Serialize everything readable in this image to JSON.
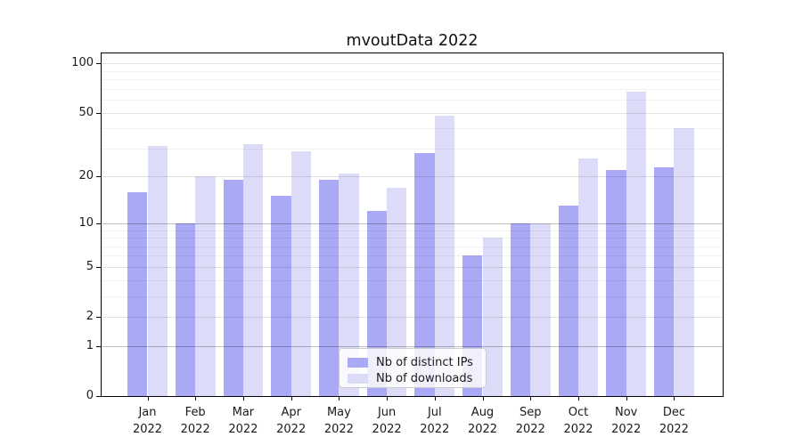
{
  "figure": {
    "background": "#ffffff"
  },
  "chart_data": {
    "type": "bar",
    "title": "mvoutData 2022",
    "categories": [
      "Jan 2022",
      "Feb 2022",
      "Mar 2022",
      "Apr 2022",
      "May 2022",
      "Jun 2022",
      "Jul 2022",
      "Aug 2022",
      "Sep 2022",
      "Oct 2022",
      "Nov 2022",
      "Dec 2022"
    ],
    "series": [
      {
        "name": "Nb of distinct IPs",
        "color": "#a9a9f5",
        "values": [
          16,
          10,
          19,
          15,
          19,
          12,
          28,
          6,
          10,
          13,
          22,
          23
        ]
      },
      {
        "name": "Nb of downloads",
        "color": "#dcdcf9",
        "values": [
          31,
          20,
          32,
          29,
          21,
          17,
          48,
          8,
          10,
          26,
          67,
          40
        ]
      }
    ],
    "xlabel": "",
    "ylabel": "",
    "yscale": "log1p",
    "ylim": [
      0,
      116
    ],
    "y_ticks": [
      0,
      1,
      2,
      5,
      10,
      20,
      50,
      100
    ],
    "y_strong_gridlines": [
      1,
      10
    ],
    "y_minor_ticks": [
      3,
      4,
      6,
      7,
      8,
      9,
      30,
      40,
      60,
      70,
      80,
      90
    ],
    "grid": true,
    "legend_position": "lower center"
  }
}
